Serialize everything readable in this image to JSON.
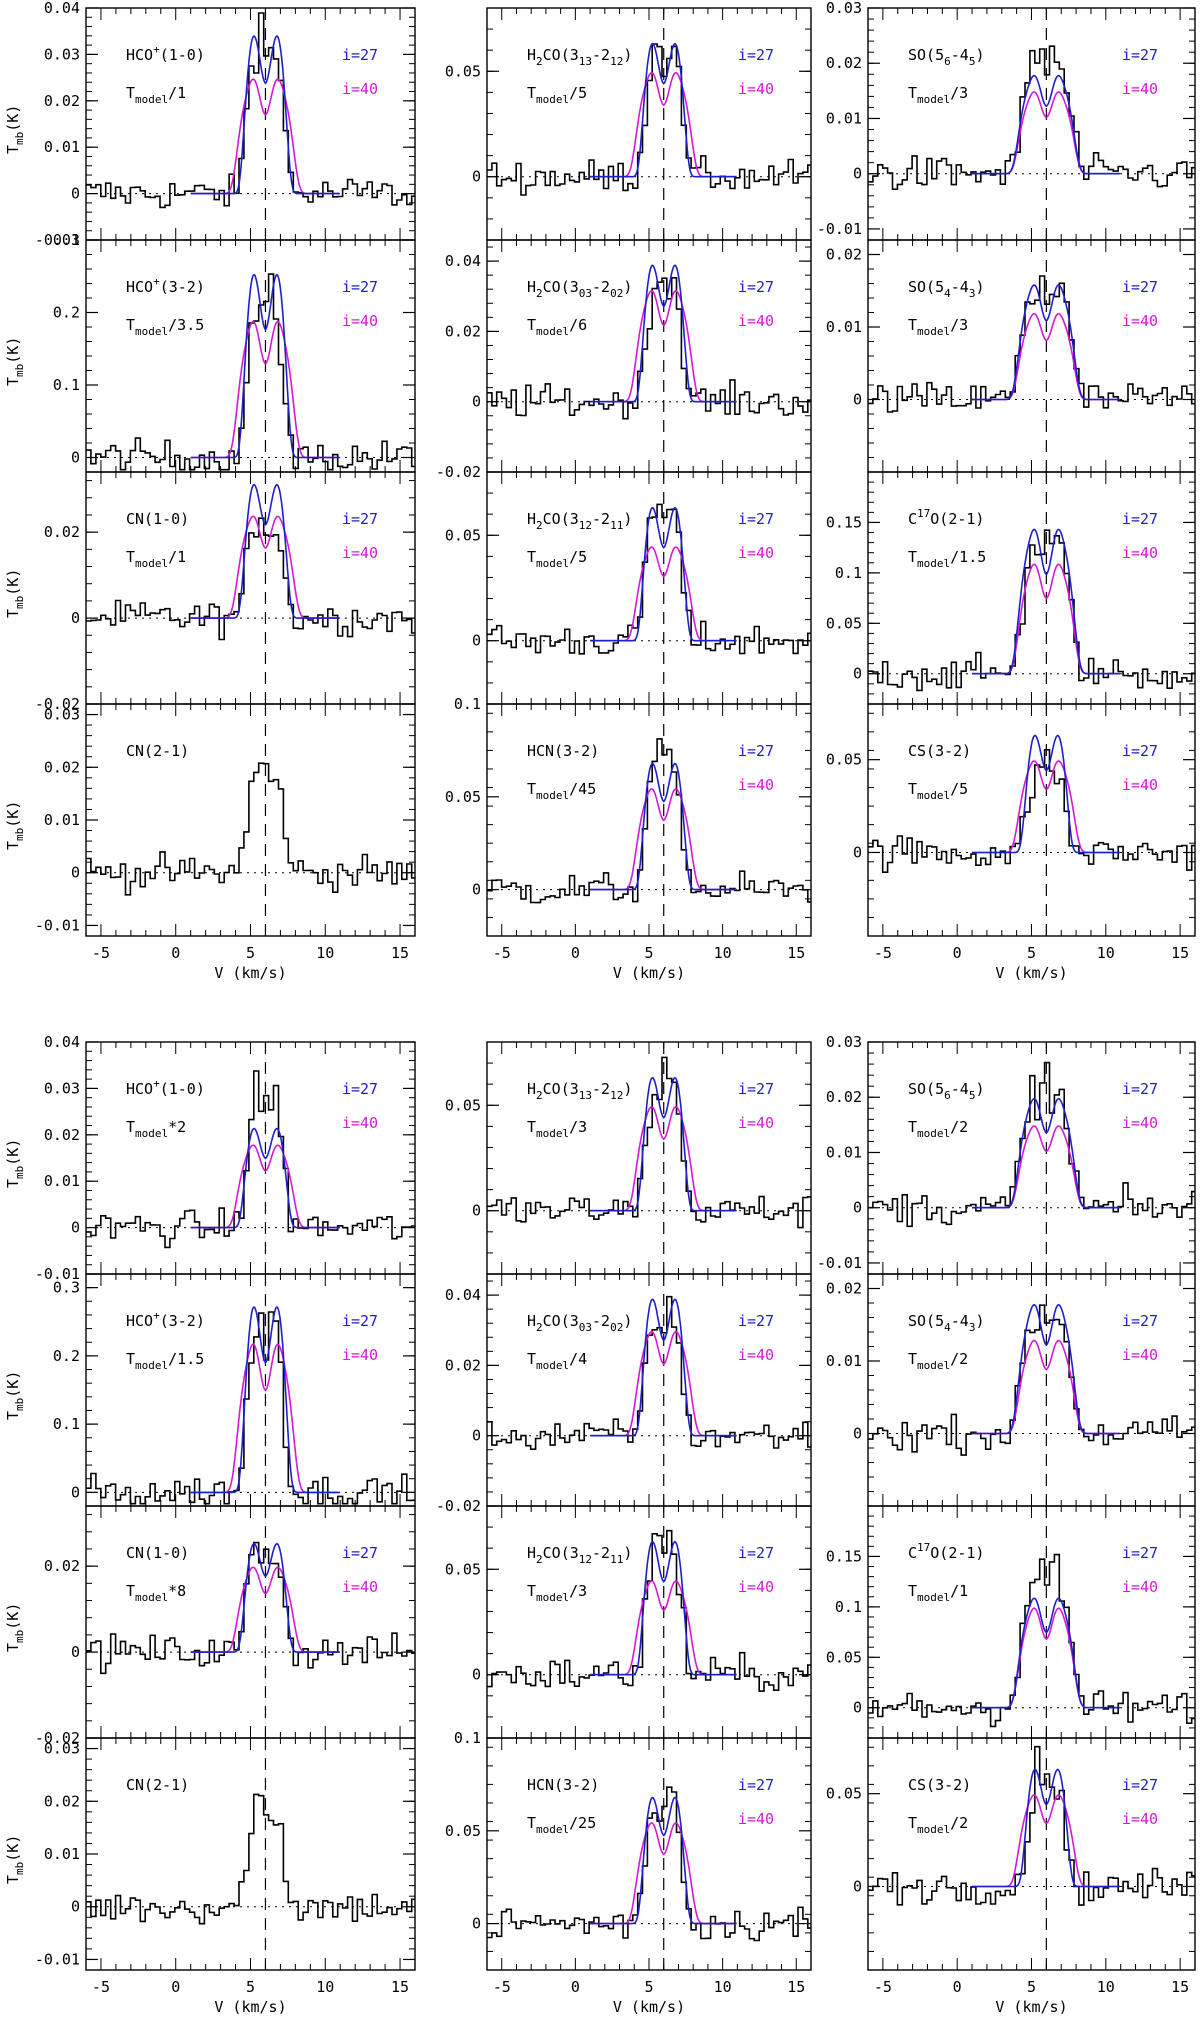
{
  "colors": {
    "observed": "#000000",
    "i27": "#1f1fcc",
    "i40": "#d51ad5"
  },
  "chart_data": [
    {
      "type": "line",
      "block": "top",
      "xlabel": "V (km/s)",
      "ylabel": "T_mb(K)",
      "xlim": [
        -6,
        16
      ],
      "xticks": [
        -5,
        0,
        5,
        10,
        15
      ],
      "vline": 6,
      "columns": [
        [
          {
            "molecule": "HCO+(1-0)",
            "scale": "T_model/1",
            "ylim": [
              -0.01,
              0.04
            ],
            "yticks": [
              -0.01,
              0,
              0.01,
              0.02,
              0.03,
              0.04
            ],
            "obs_peak": 0.035,
            "model_i27_peak": 0.035,
            "model_i40_peak": 0.025,
            "legend": [
              "i=27",
              "i=40"
            ]
          },
          {
            "molecule": "HCO+(3-2)",
            "scale": "T_model/3.5",
            "ylim": [
              -0.02,
              0.3
            ],
            "yticks": [
              0,
              0.1,
              0.2,
              0.3
            ],
            "obs_peak": 0.22,
            "model_i27_peak": 0.26,
            "model_i40_peak": 0.19,
            "legend": [
              "i=27",
              "i=40"
            ]
          },
          {
            "molecule": "CN(1-0)",
            "scale": "T_model/1",
            "ylim": [
              -0.02,
              0.034
            ],
            "yticks": [
              -0.02,
              0,
              0.02
            ],
            "obs_peak": 0.024,
            "model_i27_peak": 0.032,
            "model_i40_peak": 0.024,
            "legend": [
              "i=27",
              "i=40"
            ]
          },
          {
            "molecule": "CN(2-1)",
            "scale": "",
            "ylim": [
              -0.012,
              0.032
            ],
            "yticks": [
              -0.01,
              0,
              0.01,
              0.02,
              0.03
            ],
            "obs_peak": 0.02,
            "model_i27_peak": null,
            "model_i40_peak": null,
            "legend": []
          }
        ],
        [
          {
            "molecule": "H2CO(3_13-2_12)",
            "scale": "T_model/5",
            "ylim": [
              -0.03,
              0.08
            ],
            "yticks": [
              0,
              0.05
            ],
            "obs_peak": 0.065,
            "model_i27_peak": 0.065,
            "model_i40_peak": 0.05,
            "legend": [
              "i=27",
              "i=40"
            ]
          },
          {
            "molecule": "H2CO(3_03-2_02)",
            "scale": "T_model/6",
            "ylim": [
              -0.02,
              0.046
            ],
            "yticks": [
              -0.02,
              0,
              0.02,
              0.04
            ],
            "obs_peak": 0.036,
            "model_i27_peak": 0.04,
            "model_i40_peak": 0.032,
            "legend": [
              "i=27",
              "i=40"
            ]
          },
          {
            "molecule": "H2CO(3_12-2_11)",
            "scale": "T_model/5",
            "ylim": [
              -0.03,
              0.08
            ],
            "yticks": [
              0,
              0.05
            ],
            "obs_peak": 0.065,
            "model_i27_peak": 0.065,
            "model_i40_peak": 0.045,
            "legend": [
              "i=27",
              "i=40"
            ]
          },
          {
            "molecule": "HCN(3-2)",
            "scale": "T_model/45",
            "ylim": [
              -0.025,
              0.1
            ],
            "yticks": [
              0,
              0.05,
              0.1
            ],
            "obs_peak": 0.07,
            "model_i27_peak": 0.07,
            "model_i40_peak": 0.055,
            "legend": [
              "i=27",
              "i=40"
            ]
          }
        ],
        [
          {
            "molecule": "SO(5_6-4_5)",
            "scale": "T_model/3",
            "ylim": [
              -0.012,
              0.03
            ],
            "yticks": [
              -0.01,
              0,
              0.01,
              0.02,
              0.03
            ],
            "obs_peak": 0.022,
            "model_i27_peak": 0.018,
            "model_i40_peak": 0.015,
            "legend": [
              "i=27",
              "i=40"
            ]
          },
          {
            "molecule": "SO(5_4-4_3)",
            "scale": "T_model/3",
            "ylim": [
              -0.01,
              0.022
            ],
            "yticks": [
              0,
              0.01,
              0.02
            ],
            "obs_peak": 0.017,
            "model_i27_peak": 0.016,
            "model_i40_peak": 0.012,
            "legend": [
              "i=27",
              "i=40"
            ]
          },
          {
            "molecule": "C17O(2-1)",
            "scale": "T_model/1.5",
            "ylim": [
              -0.03,
              0.2
            ],
            "yticks": [
              0,
              0.05,
              0.1,
              0.15
            ],
            "obs_peak": 0.14,
            "model_i27_peak": 0.145,
            "model_i40_peak": 0.11,
            "legend": [
              "i=27",
              "i=40"
            ]
          },
          {
            "molecule": "CS(3-2)",
            "scale": "T_model/5",
            "ylim": [
              -0.045,
              0.08
            ],
            "yticks": [
              0,
              0.05
            ],
            "obs_peak": 0.05,
            "model_i27_peak": 0.065,
            "model_i40_peak": 0.05,
            "legend": [
              "i=27",
              "i=40"
            ]
          }
        ]
      ]
    },
    {
      "type": "line",
      "block": "bottom",
      "xlabel": "V (km/s)",
      "ylabel": "T_mb(K)",
      "xlim": [
        -6,
        16
      ],
      "xticks": [
        -5,
        0,
        5,
        10,
        15
      ],
      "vline": 6,
      "columns": [
        [
          {
            "molecule": "HCO+(1-0)",
            "scale": "T_model*2",
            "ylim": [
              -0.01,
              0.04
            ],
            "yticks": [
              -0.01,
              0,
              0.01,
              0.02,
              0.03,
              0.04
            ],
            "obs_peak": 0.03,
            "model_i27_peak": 0.022,
            "model_i40_peak": 0.018,
            "legend": [
              "i=27",
              "i=40"
            ]
          },
          {
            "molecule": "HCO+(3-2)",
            "scale": "T_model/1.5",
            "ylim": [
              -0.02,
              0.32
            ],
            "yticks": [
              0,
              0.1,
              0.2,
              0.3
            ],
            "obs_peak": 0.26,
            "model_i27_peak": 0.28,
            "model_i40_peak": 0.22,
            "legend": [
              "i=27",
              "i=40"
            ]
          },
          {
            "molecule": "CN(1-0)",
            "scale": "T_model*8",
            "ylim": [
              -0.02,
              0.034
            ],
            "yticks": [
              -0.02,
              0,
              0.02
            ],
            "obs_peak": 0.026,
            "model_i27_peak": 0.026,
            "model_i40_peak": 0.02,
            "legend": [
              "i=27",
              "i=40"
            ]
          },
          {
            "molecule": "CN(2-1)",
            "scale": "",
            "ylim": [
              -0.012,
              0.032
            ],
            "yticks": [
              -0.01,
              0,
              0.01,
              0.02,
              0.03
            ],
            "obs_peak": 0.02,
            "model_i27_peak": null,
            "model_i40_peak": null,
            "legend": []
          }
        ],
        [
          {
            "molecule": "H2CO(3_13-2_12)",
            "scale": "T_model/3",
            "ylim": [
              -0.03,
              0.08
            ],
            "yticks": [
              0,
              0.05
            ],
            "obs_peak": 0.065,
            "model_i27_peak": 0.065,
            "model_i40_peak": 0.05,
            "legend": [
              "i=27",
              "i=40"
            ]
          },
          {
            "molecule": "H2CO(3_03-2_02)",
            "scale": "T_model/4",
            "ylim": [
              -0.02,
              0.046
            ],
            "yticks": [
              -0.02,
              0,
              0.02,
              0.04
            ],
            "obs_peak": 0.036,
            "model_i27_peak": 0.04,
            "model_i40_peak": 0.03,
            "legend": [
              "i=27",
              "i=40"
            ]
          },
          {
            "molecule": "H2CO(3_12-2_11)",
            "scale": "T_model/3",
            "ylim": [
              -0.03,
              0.08
            ],
            "yticks": [
              0,
              0.05
            ],
            "obs_peak": 0.065,
            "model_i27_peak": 0.065,
            "model_i40_peak": 0.045,
            "legend": [
              "i=27",
              "i=40"
            ]
          },
          {
            "molecule": "HCN(3-2)",
            "scale": "T_model/25",
            "ylim": [
              -0.025,
              0.1
            ],
            "yticks": [
              0,
              0.05,
              0.1
            ],
            "obs_peak": 0.07,
            "model_i27_peak": 0.07,
            "model_i40_peak": 0.055,
            "legend": [
              "i=27",
              "i=40"
            ]
          }
        ],
        [
          {
            "molecule": "SO(5_6-4_5)",
            "scale": "T_model/2",
            "ylim": [
              -0.012,
              0.03
            ],
            "yticks": [
              -0.01,
              0,
              0.01,
              0.02,
              0.03
            ],
            "obs_peak": 0.022,
            "model_i27_peak": 0.02,
            "model_i40_peak": 0.015,
            "legend": [
              "i=27",
              "i=40"
            ]
          },
          {
            "molecule": "SO(5_4-4_3)",
            "scale": "T_model/2",
            "ylim": [
              -0.01,
              0.022
            ],
            "yticks": [
              0,
              0.01,
              0.02
            ],
            "obs_peak": 0.018,
            "model_i27_peak": 0.018,
            "model_i40_peak": 0.013,
            "legend": [
              "i=27",
              "i=40"
            ]
          },
          {
            "molecule": "C17O(2-1)",
            "scale": "T_model/1",
            "ylim": [
              -0.03,
              0.2
            ],
            "yticks": [
              0,
              0.05,
              0.1,
              0.15
            ],
            "obs_peak": 0.14,
            "model_i27_peak": 0.11,
            "model_i40_peak": 0.1,
            "legend": [
              "i=27",
              "i=40"
            ]
          },
          {
            "molecule": "CS(3-2)",
            "scale": "T_model/2",
            "ylim": [
              -0.045,
              0.08
            ],
            "yticks": [
              0,
              0.05
            ],
            "obs_peak": 0.065,
            "model_i27_peak": 0.065,
            "model_i40_peak": 0.05,
            "legend": [
              "i=27",
              "i=40"
            ]
          }
        ]
      ]
    }
  ]
}
